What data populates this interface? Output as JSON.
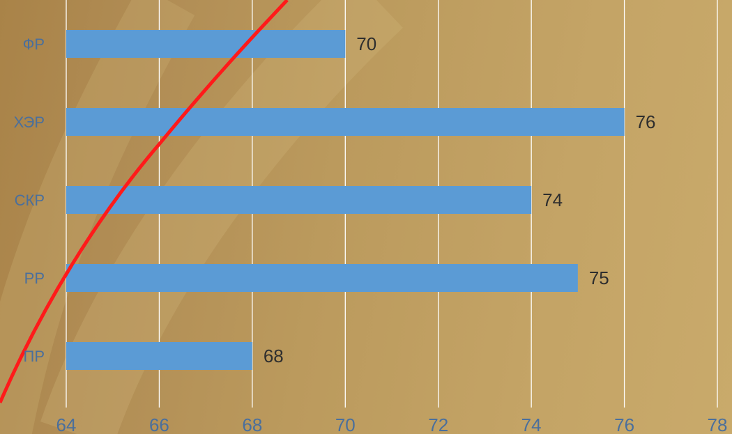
{
  "chart_data": {
    "type": "bar",
    "orientation": "horizontal",
    "categories": [
      "ФР",
      "ХЭР",
      "СКР",
      "РР",
      "ПР"
    ],
    "values": [
      70,
      76,
      74,
      75,
      68
    ],
    "data_labels": [
      "70",
      "76",
      "74",
      "75",
      "68"
    ],
    "xlim": [
      64,
      78
    ],
    "x_ticks": [
      64,
      66,
      68,
      70,
      72,
      74,
      76,
      78
    ],
    "x_tick_labels": [
      "64",
      "66",
      "68",
      "70",
      "72",
      "74",
      "76",
      "78"
    ],
    "grid": "vertical",
    "legend": "none",
    "title": "",
    "xlabel": "",
    "ylabel": ""
  },
  "colors": {
    "bar": "#5b9bd5",
    "gridline": "#ffffff",
    "decorative_curve": "#ff1a1a",
    "tick_label": "#4a6f9c",
    "data_label": "#2e2e2e"
  }
}
